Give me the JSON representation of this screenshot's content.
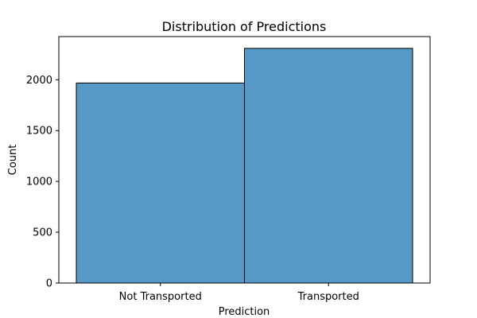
{
  "chart_data": {
    "type": "bar",
    "title": "Distribution of Predictions",
    "xlabel": "Prediction",
    "ylabel": "Count",
    "categories": [
      "Not Transported",
      "Transported"
    ],
    "values": [
      1968,
      2309
    ],
    "yticks": [
      0,
      500,
      1000,
      1500,
      2000
    ],
    "ylim": [
      0,
      2425
    ],
    "grid": false,
    "bar_color": "#5799c6",
    "edge_color": "#000000"
  }
}
